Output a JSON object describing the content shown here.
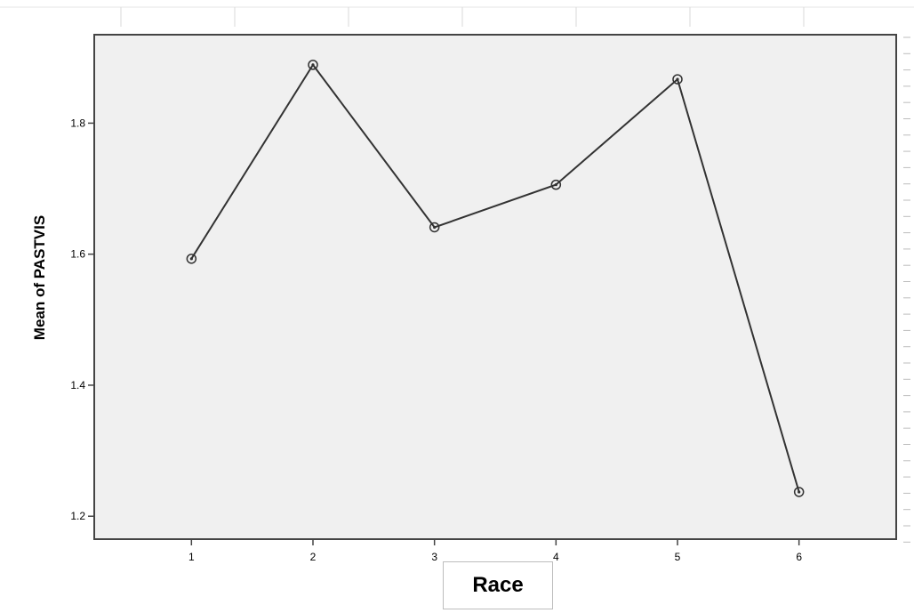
{
  "chart_data": {
    "type": "line",
    "xlabel": "Race",
    "ylabel": "Mean of PASTVIS",
    "x": [
      1,
      2,
      3,
      4,
      5,
      6
    ],
    "x_ticks": [
      "1",
      "2",
      "3",
      "4",
      "5",
      "6"
    ],
    "xlim": [
      0.2,
      6.8
    ],
    "y_ticks": [
      "1.2",
      "1.4",
      "1.6",
      "1.8"
    ],
    "ylim": [
      1.165,
      1.935
    ],
    "series": [
      {
        "values": [
          1.593,
          1.889,
          1.641,
          1.706,
          1.867,
          1.237
        ]
      }
    ],
    "markers": "open-circle",
    "grid": false,
    "colors": {
      "plot_background": "#f0f0f0",
      "line": "#333333"
    }
  }
}
